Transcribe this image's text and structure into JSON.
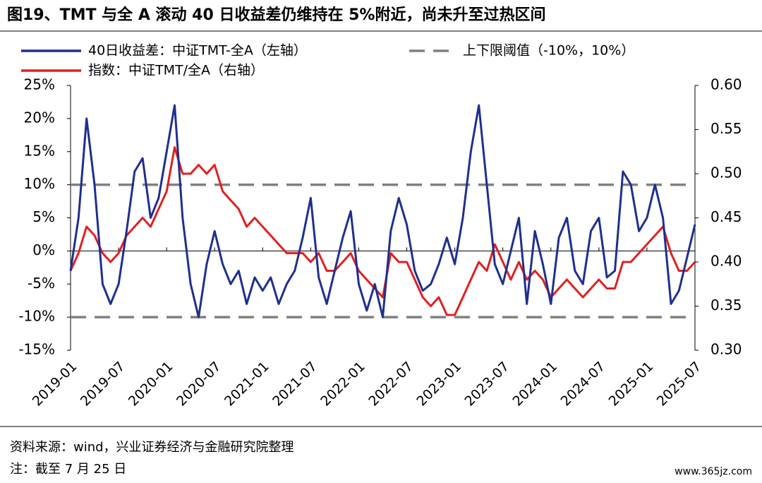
{
  "chart_data": {
    "type": "line",
    "title": "图19、TMT 与全 A 滚动 40 日收益差仍维持在 5%附近，尚未升至过热区间",
    "categories": [
      "2019-01",
      "2019-02",
      "2019-03",
      "2019-04",
      "2019-05",
      "2019-06",
      "2019-07",
      "2019-08",
      "2019-09",
      "2019-10",
      "2019-11",
      "2019-12",
      "2020-01",
      "2020-02",
      "2020-03",
      "2020-04",
      "2020-05",
      "2020-06",
      "2020-07",
      "2020-08",
      "2020-09",
      "2020-10",
      "2020-11",
      "2020-12",
      "2021-01",
      "2021-02",
      "2021-03",
      "2021-04",
      "2021-05",
      "2021-06",
      "2021-07",
      "2021-08",
      "2021-09",
      "2021-10",
      "2021-11",
      "2021-12",
      "2022-01",
      "2022-02",
      "2022-03",
      "2022-04",
      "2022-05",
      "2022-06",
      "2022-07",
      "2022-08",
      "2022-09",
      "2022-10",
      "2022-11",
      "2022-12",
      "2023-01",
      "2023-02",
      "2023-03",
      "2023-04",
      "2023-05",
      "2023-06",
      "2023-07",
      "2023-08",
      "2023-09",
      "2023-10",
      "2023-11",
      "2023-12",
      "2024-01",
      "2024-02",
      "2024-03",
      "2024-04",
      "2024-05",
      "2024-06",
      "2024-07",
      "2024-08",
      "2024-09",
      "2024-10",
      "2024-11",
      "2024-12",
      "2025-01",
      "2025-02",
      "2025-03",
      "2025-04",
      "2025-05",
      "2025-06",
      "2025-07"
    ],
    "xticks": [
      "2019-01",
      "2019-07",
      "2020-01",
      "2020-07",
      "2021-01",
      "2021-07",
      "2022-01",
      "2022-07",
      "2023-01",
      "2023-07",
      "2024-01",
      "2024-07",
      "2025-01",
      "2025-07"
    ],
    "series": [
      {
        "name": "40日收益差：中证TMT-全A（左轴）",
        "color": "#1f2f8f",
        "axis": "y",
        "values": [
          -3,
          5,
          20,
          10,
          -5,
          -8,
          -5,
          3,
          12,
          14,
          5,
          8,
          15,
          22,
          5,
          -5,
          -10,
          -2,
          3,
          -2,
          -5,
          -3,
          -8,
          -4,
          -6,
          -4,
          -8,
          -5,
          -3,
          2,
          8,
          -4,
          -8,
          -3,
          2,
          6,
          -5,
          -9,
          -5,
          -10,
          3,
          8,
          4,
          -3,
          -6,
          -5,
          -2,
          2,
          -2,
          5,
          15,
          22,
          10,
          -2,
          -5,
          0,
          5,
          -8,
          3,
          -2,
          -8,
          2,
          5,
          -3,
          -5,
          3,
          5,
          -4,
          -3,
          12,
          10,
          3,
          5,
          10,
          5,
          -8,
          -6,
          -1,
          4
        ]
      },
      {
        "name": "指数：中证TMT/全A（右轴）",
        "color": "#e02020",
        "axis": "y2",
        "values": [
          0.39,
          0.41,
          0.44,
          0.43,
          0.41,
          0.4,
          0.41,
          0.43,
          0.44,
          0.45,
          0.44,
          0.46,
          0.48,
          0.53,
          0.5,
          0.5,
          0.51,
          0.5,
          0.51,
          0.48,
          0.47,
          0.46,
          0.44,
          0.45,
          0.44,
          0.43,
          0.42,
          0.41,
          0.41,
          0.41,
          0.4,
          0.41,
          0.39,
          0.39,
          0.4,
          0.41,
          0.39,
          0.38,
          0.37,
          0.36,
          0.41,
          0.4,
          0.4,
          0.38,
          0.36,
          0.35,
          0.36,
          0.34,
          0.34,
          0.36,
          0.38,
          0.4,
          0.39,
          0.42,
          0.4,
          0.38,
          0.4,
          0.38,
          0.39,
          0.38,
          0.36,
          0.37,
          0.38,
          0.37,
          0.36,
          0.37,
          0.38,
          0.37,
          0.37,
          0.4,
          0.4,
          0.41,
          0.42,
          0.43,
          0.44,
          0.41,
          0.39,
          0.39,
          0.4
        ]
      }
    ],
    "reference_lines": {
      "name": "上下限阈值（-10%，10%）",
      "color": "#808080",
      "values": [
        -10,
        10
      ]
    },
    "ylim": [
      -15,
      25
    ],
    "yticks": [
      {
        "value": -15,
        "label": "-15%"
      },
      {
        "value": -10,
        "label": "-10%"
      },
      {
        "value": -5,
        "label": "-5%"
      },
      {
        "value": 0,
        "label": "0%"
      },
      {
        "value": 5,
        "label": "5%"
      },
      {
        "value": 10,
        "label": "10%"
      },
      {
        "value": 15,
        "label": "15%"
      },
      {
        "value": 20,
        "label": "20%"
      },
      {
        "value": 25,
        "label": "25%"
      }
    ],
    "y2lim": [
      0.3,
      0.6
    ],
    "y2ticks": [
      {
        "value": 0.3,
        "label": "0.30"
      },
      {
        "value": 0.35,
        "label": "0.35"
      },
      {
        "value": 0.4,
        "label": "0.40"
      },
      {
        "value": 0.45,
        "label": "0.45"
      },
      {
        "value": 0.5,
        "label": "0.50"
      },
      {
        "value": 0.55,
        "label": "0.55"
      },
      {
        "value": 0.6,
        "label": "0.60"
      }
    ],
    "source": "资料来源：wind，兴业证券经济与金融研究院整理",
    "note": "注：截至 7 月 25 日",
    "watermark": "www.365jz.com"
  }
}
